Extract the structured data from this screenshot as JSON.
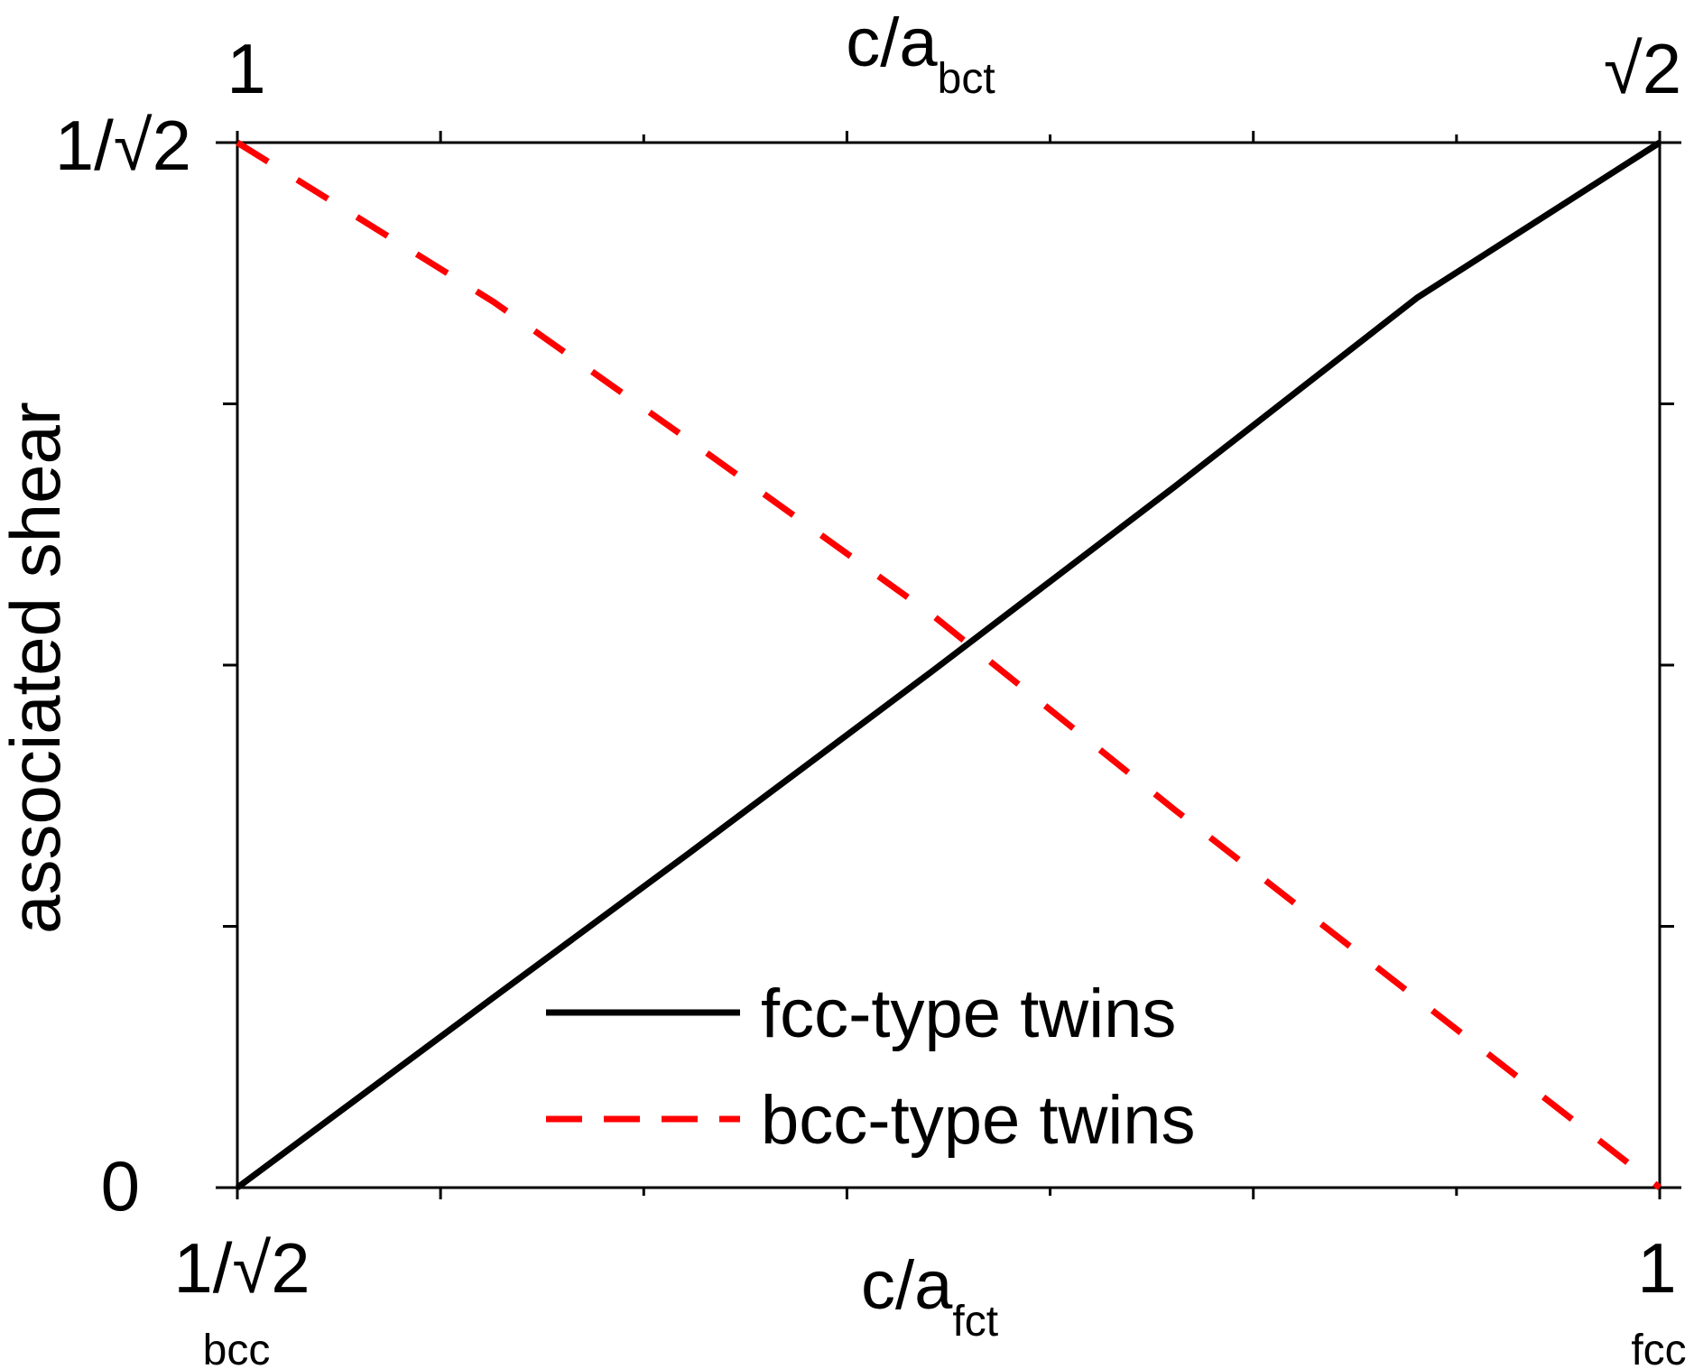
{
  "chart_data": {
    "type": "line",
    "x_bottom": {
      "label_main": "c/a",
      "label_sub": "fct",
      "range": [
        0.70711,
        1
      ],
      "tick_labels": {
        "min": "1/√2",
        "max": "1"
      },
      "end_labels": {
        "min": "bcc",
        "max": "fcc"
      }
    },
    "x_top": {
      "label_main": "c/a",
      "label_sub": "bct",
      "range": [
        1,
        1.41421
      ],
      "tick_labels": {
        "min": "1",
        "max": "√2"
      }
    },
    "y_axis": {
      "label": "associated shear",
      "range": [
        0,
        0.70711
      ],
      "tick_labels": {
        "min": "0",
        "max": "1/√2"
      }
    },
    "series": [
      {
        "name": "fcc-type twins",
        "color": "#000000",
        "style": "solid",
        "x": [
          0.70711,
          0.76,
          0.8,
          0.85,
          0.9,
          0.95,
          1.0
        ],
        "y": [
          0.0,
          0.129,
          0.226,
          0.349,
          0.474,
          0.602,
          0.70711
        ]
      },
      {
        "name": "bcc-type twins",
        "color": "#ff0000",
        "style": "dashed",
        "x": [
          0.70711,
          0.76,
          0.8,
          0.85,
          0.9,
          0.95,
          1.0
        ],
        "y": [
          0.70711,
          0.599,
          0.506,
          0.388,
          0.256,
          0.128,
          0.0
        ]
      }
    ],
    "legend": {
      "placement": "bottom-center"
    },
    "grid": false
  }
}
